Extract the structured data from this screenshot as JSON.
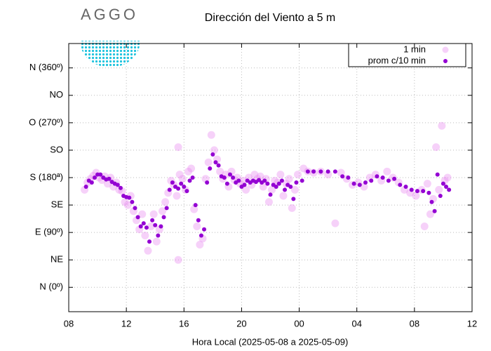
{
  "logo": "AGGO",
  "chart_data": {
    "type": "scatter",
    "title": "Dirección del Viento a 5 m",
    "x_label": "Hora Local (2025-05-08 a 2025-05-09)",
    "xlim": [
      8,
      36
    ],
    "xticks": [
      {
        "value": 8,
        "label": "08"
      },
      12,
      16,
      20,
      {
        "value": 24,
        "label": "00"
      },
      {
        "value": 28,
        "label": "04"
      },
      {
        "value": 32,
        "label": "08"
      },
      {
        "value": 36,
        "label": "12"
      }
    ],
    "ylim": [
      -40,
      400
    ],
    "yticks": [
      {
        "value": 0,
        "label": "N (0º)"
      },
      {
        "value": 45,
        "label": "NE"
      },
      {
        "value": 90,
        "label": "E (90º)"
      },
      {
        "value": 135,
        "label": "SE"
      },
      {
        "value": 180,
        "label": "S (180ª)"
      },
      {
        "value": 225,
        "label": "SO"
      },
      {
        "value": 270,
        "label": "O (270º)"
      },
      {
        "value": 315,
        "label": "NO"
      },
      {
        "value": 360,
        "label": "N (360º)"
      }
    ],
    "grid": true,
    "legend": "upper right",
    "series": [
      {
        "name": "1 min",
        "color": "#e98bf0",
        "x": [
          9.1,
          9.3,
          9.5,
          9.7,
          9.9,
          10.1,
          10.3,
          10.5,
          10.7,
          10.9,
          11.1,
          11.3,
          11.5,
          11.7,
          11.9,
          12.1,
          12.3,
          12.5,
          12.7,
          12.9,
          13.1,
          13.3,
          13.5,
          13.7,
          13.9,
          14.1,
          14.3,
          14.5,
          14.7,
          14.9,
          15.1,
          15.3,
          15.5,
          15.6,
          15.6,
          15.7,
          15.9,
          16.1,
          16.3,
          16.5,
          16.7,
          16.9,
          17.1,
          17.3,
          17.5,
          17.7,
          17.9,
          18.1,
          18.3,
          18.5,
          18.7,
          18.9,
          19.1,
          19.3,
          19.5,
          19.7,
          19.9,
          20.1,
          20.3,
          20.5,
          20.7,
          20.9,
          21.1,
          21.3,
          21.5,
          21.7,
          21.9,
          22.1,
          22.3,
          22.5,
          22.7,
          22.9,
          23.1,
          23.3,
          23.5,
          23.7,
          23.9,
          24.3,
          24.6,
          25.0,
          25.5,
          26.0,
          26.5,
          26.9,
          27.3,
          27.7,
          28.1,
          28.5,
          28.9,
          29.3,
          29.7,
          30.1,
          30.5,
          30.9,
          31.3,
          31.7,
          32.1,
          32.5,
          32.7,
          32.9,
          33.1,
          33.3,
          33.5,
          33.7,
          33.9,
          34.1,
          34.3
        ],
        "values": [
          160,
          172,
          178,
          183,
          188,
          180,
          176,
          182,
          170,
          180,
          165,
          172,
          160,
          158,
          140,
          135,
          150,
          125,
          110,
          95,
          120,
          85,
          60,
          100,
          120,
          75,
          95,
          125,
          140,
          155,
          175,
          168,
          150,
          230,
          45,
          185,
          178,
          160,
          190,
          195,
          128,
          100,
          70,
          80,
          178,
          205,
          250,
          225,
          210,
          190,
          178,
          185,
          165,
          190,
          176,
          180,
          170,
          175,
          160,
          180,
          168,
          185,
          178,
          182,
          165,
          178,
          140,
          160,
          175,
          172,
          185,
          150,
          170,
          178,
          130,
          160,
          185,
          195,
          190,
          188,
          190,
          185,
          105,
          188,
          178,
          168,
          172,
          165,
          180,
          185,
          175,
          190,
          180,
          172,
          160,
          155,
          150,
          160,
          100,
          170,
          120,
          145,
          230,
          160,
          265,
          175,
          180
        ]
      },
      {
        "name": "prom c/10 min",
        "color": "#9400d3",
        "x": [
          9.2,
          9.4,
          9.6,
          9.8,
          10.0,
          10.2,
          10.4,
          10.6,
          10.8,
          11.0,
          11.2,
          11.4,
          11.6,
          11.8,
          12.0,
          12.2,
          12.4,
          12.6,
          12.8,
          13.0,
          13.2,
          13.4,
          13.6,
          13.8,
          14.0,
          14.2,
          14.4,
          14.6,
          14.8,
          15.0,
          15.2,
          15.4,
          15.6,
          15.8,
          16.0,
          16.2,
          16.4,
          16.6,
          16.8,
          17.0,
          17.2,
          17.4,
          17.6,
          17.8,
          18.0,
          18.2,
          18.4,
          18.6,
          18.8,
          19.0,
          19.2,
          19.4,
          19.6,
          19.8,
          20.0,
          20.2,
          20.4,
          20.6,
          20.8,
          21.0,
          21.2,
          21.4,
          21.6,
          21.8,
          22.0,
          22.2,
          22.4,
          22.6,
          22.8,
          23.0,
          23.2,
          23.4,
          23.6,
          23.8,
          24.2,
          24.6,
          25.0,
          25.5,
          26.0,
          26.5,
          27.0,
          27.4,
          27.8,
          28.2,
          28.6,
          29.0,
          29.4,
          29.8,
          30.2,
          30.6,
          31.0,
          31.4,
          31.8,
          32.2,
          32.6,
          33.0,
          33.2,
          33.4,
          33.6,
          33.8,
          34.0,
          34.2,
          34.4
        ],
        "values": [
          165,
          175,
          172,
          180,
          185,
          185,
          180,
          177,
          178,
          173,
          170,
          168,
          163,
          150,
          148,
          147,
          140,
          130,
          115,
          100,
          105,
          98,
          75,
          110,
          102,
          85,
          100,
          115,
          130,
          160,
          172,
          165,
          162,
          170,
          165,
          158,
          175,
          180,
          135,
          110,
          85,
          95,
          172,
          195,
          218,
          205,
          200,
          182,
          180,
          170,
          185,
          180,
          172,
          175,
          165,
          168,
          175,
          172,
          175,
          173,
          176,
          172,
          175,
          170,
          152,
          168,
          165,
          170,
          175,
          160,
          168,
          165,
          145,
          172,
          175,
          190,
          190,
          190,
          190,
          190,
          182,
          180,
          170,
          168,
          172,
          175,
          182,
          180,
          175,
          178,
          168,
          165,
          160,
          158,
          158,
          155,
          140,
          125,
          185,
          150,
          170,
          165,
          160
        ]
      }
    ]
  }
}
